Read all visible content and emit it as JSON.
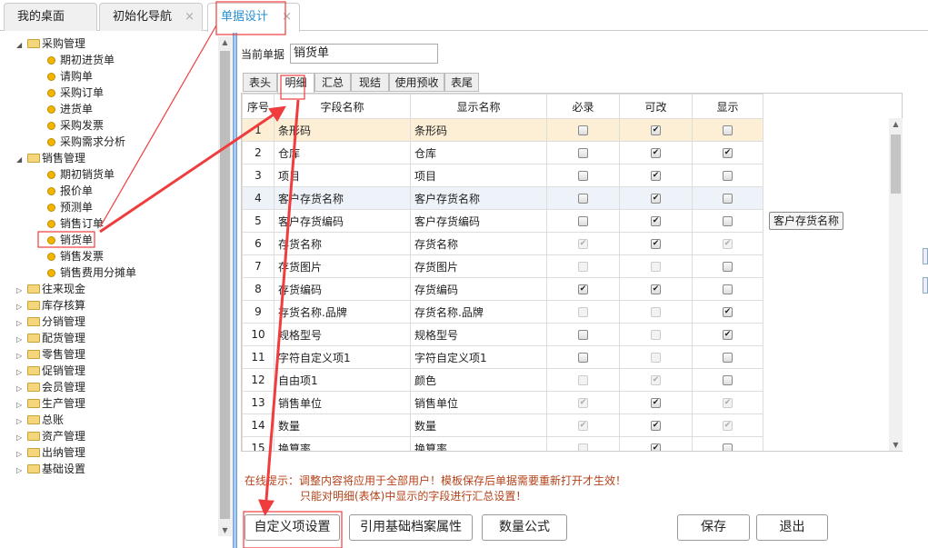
{
  "tabs": [
    {
      "label": "我的桌面",
      "closable": false
    },
    {
      "label": "初始化导航",
      "closable": true
    },
    {
      "label": "单据设计",
      "closable": true,
      "active": true
    }
  ],
  "close_glyph": "×",
  "tree": [
    {
      "label": "采购管理",
      "expanded": true,
      "children": [
        "期初进货单",
        "请购单",
        "采购订单",
        "进货单",
        "采购发票",
        "采购需求分析"
      ]
    },
    {
      "label": "销售管理",
      "expanded": true,
      "children": [
        "期初销货单",
        "报价单",
        "预测单",
        "销售订单",
        "销货单",
        "销售发票",
        "销售费用分摊单"
      ]
    },
    {
      "label": "往来现金"
    },
    {
      "label": "库存核算"
    },
    {
      "label": "分销管理"
    },
    {
      "label": "配货管理"
    },
    {
      "label": "零售管理"
    },
    {
      "label": "促销管理"
    },
    {
      "label": "会员管理"
    },
    {
      "label": "生产管理"
    },
    {
      "label": "总账"
    },
    {
      "label": "资产管理"
    },
    {
      "label": "出纳管理"
    },
    {
      "label": "基础设置"
    }
  ],
  "current_doc": {
    "label": "当前单据",
    "value": "销货单"
  },
  "subtabs": [
    "表头",
    "明细",
    "汇总",
    "现结",
    "使用预收",
    "表尾"
  ],
  "active_subtab": "明细",
  "grid": {
    "columns": [
      "序号",
      "字段名称",
      "显示名称",
      "必录",
      "可改",
      "显示"
    ],
    "rows": [
      {
        "no": "1",
        "field": "条形码",
        "display": "条形码",
        "req": "u",
        "edit": "c",
        "show": "u"
      },
      {
        "no": "2",
        "field": "仓库",
        "display": "仓库",
        "req": "u",
        "edit": "c",
        "show": "c"
      },
      {
        "no": "3",
        "field": "项目",
        "display": "项目",
        "req": "u",
        "edit": "c",
        "show": "u"
      },
      {
        "no": "4",
        "field": "客户存货名称",
        "display": "客户存货名称",
        "req": "u",
        "edit": "c",
        "show": "u"
      },
      {
        "no": "5",
        "field": "客户存货编码",
        "display": "客户存货编码",
        "req": "u",
        "edit": "c",
        "show": "u"
      },
      {
        "no": "6",
        "field": "存货名称",
        "display": "存货名称",
        "req": "dc",
        "edit": "c",
        "show": "dc"
      },
      {
        "no": "7",
        "field": "存货图片",
        "display": "存货图片",
        "req": "du",
        "edit": "du",
        "show": "u"
      },
      {
        "no": "8",
        "field": "存货编码",
        "display": "存货编码",
        "req": "c",
        "edit": "c",
        "show": "u"
      },
      {
        "no": "9",
        "field": "存货名称.品牌",
        "display": "存货名称.品牌",
        "req": "du",
        "edit": "du",
        "show": "c"
      },
      {
        "no": "10",
        "field": "规格型号",
        "display": "规格型号",
        "req": "u",
        "edit": "du",
        "show": "c"
      },
      {
        "no": "11",
        "field": "字符自定义项1",
        "display": "字符自定义项1",
        "req": "u",
        "edit": "du",
        "show": "u"
      },
      {
        "no": "12",
        "field": "自由项1",
        "display": "颜色",
        "req": "du",
        "edit": "dc",
        "show": "u"
      },
      {
        "no": "13",
        "field": "销售单位",
        "display": "销售单位",
        "req": "dc",
        "edit": "c",
        "show": "dc"
      },
      {
        "no": "14",
        "field": "数量",
        "display": "数量",
        "req": "dc",
        "edit": "c",
        "show": "dc"
      },
      {
        "no": "15",
        "field": "换算率",
        "display": "换算率",
        "req": "du",
        "edit": "c",
        "show": "u"
      }
    ],
    "selected_row": "1",
    "hover_row": "4"
  },
  "tooltip": "客户存货名称",
  "hint": {
    "line1": "在线提示：调整内容将应用于全部用户！模板保存后单据需要重新打开才生效！",
    "line2": "只能对明细(表体)中显示的字段进行汇总设置！"
  },
  "buttons": {
    "custom": "自定义项设置",
    "ref": "引用基础档案属性",
    "formula": "数量公式",
    "save": "保存",
    "exit": "退出"
  },
  "colors": {
    "active_tab": "#2a8fcf",
    "hint": "#b3421a",
    "selected_row": "#fdefd6",
    "annotation": "#f03c3c"
  }
}
